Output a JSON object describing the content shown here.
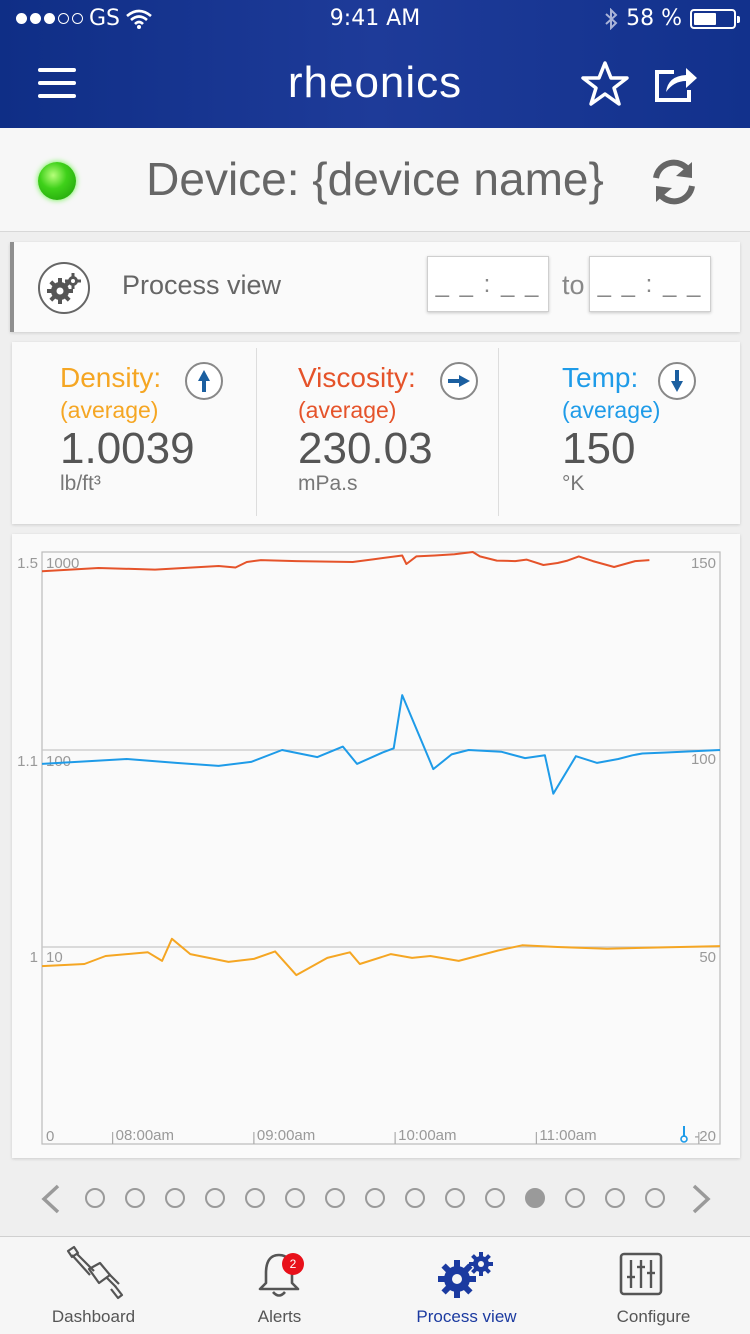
{
  "status_bar": {
    "carrier": "GS",
    "time": "9:41 AM",
    "battery": "58 %",
    "battery_level": 0.58,
    "signal_bars_filled": 3,
    "signal_bars_total": 5
  },
  "header": {
    "title": "rheonics",
    "menu_icon": "hamburger-menu-icon",
    "favorite_icon": "star-icon",
    "share_icon": "share-icon"
  },
  "device": {
    "label": "Device: {device name}",
    "status_color": "#3fd11a",
    "refresh_icon": "refresh-icon"
  },
  "process_view": {
    "title": "Process view",
    "from_value": "_ _ : _ _",
    "to_label": "to",
    "to_value": "_ _ : _ _"
  },
  "metrics": [
    {
      "name": "Density:",
      "sub": "(average)",
      "value": "1.0039",
      "unit": "lb/ft³",
      "color": "#f5a623",
      "trend": "up"
    },
    {
      "name": "Viscosity:",
      "sub": "(average)",
      "value": "230.03",
      "unit": "mPa.s",
      "color": "#e5532a",
      "trend": "right"
    },
    {
      "name": "Temp:",
      "sub": "(average)",
      "value": "150",
      "unit": "°K",
      "color": "#1e9be8",
      "trend": "down"
    }
  ],
  "chart_data": {
    "type": "line",
    "x_ticks": [
      "08:00am",
      "09:00am",
      "10:00am",
      "11:00am"
    ],
    "y_left_density_ticks": [
      "1.5",
      "1.1",
      "1"
    ],
    "y_left_viscosity_ticks": [
      "1000",
      "100",
      "10",
      "0"
    ],
    "y_right_temp_ticks": [
      "150",
      "100",
      "50",
      "-20"
    ],
    "x_range": [
      7.5,
      12.3
    ],
    "grid": true,
    "series": [
      {
        "color": "#e5532a",
        "x": [
          7.5,
          7.9,
          8.3,
          8.75,
          8.87,
          8.95,
          9.05,
          9.3,
          9.7,
          9.85,
          10.05,
          10.08,
          10.15,
          10.28,
          10.42,
          10.55,
          10.6,
          10.72,
          10.85,
          10.93,
          11.05,
          11.15,
          11.22,
          11.3,
          11.4,
          11.55,
          11.7,
          11.8
        ],
        "y": [
          800,
          830,
          815,
          850,
          835,
          890,
          910,
          900,
          890,
          920,
          960,
          870,
          950,
          960,
          975,
          1000,
          950,
          905,
          900,
          915,
          860,
          880,
          905,
          950,
          900,
          840,
          900,
          910
        ]
      },
      {
        "color": "#1e9be8",
        "x": [
          7.5,
          8.1,
          8.45,
          8.75,
          8.98,
          9.2,
          9.45,
          9.63,
          9.73,
          9.91,
          9.99,
          10.05,
          10.27,
          10.4,
          10.52,
          10.75,
          10.92,
          11.06,
          11.12,
          11.28,
          11.43,
          11.58,
          11.68,
          11.75,
          11.9,
          12.3
        ],
        "y": [
          85,
          90,
          86,
          83,
          87,
          100,
          92,
          104,
          85,
          97,
          102,
          190,
          80,
          95,
          100,
          98,
          91,
          94,
          60,
          93,
          86,
          90,
          94,
          96,
          97,
          100
        ]
      },
      {
        "color": "#f5a623",
        "x": [
          7.5,
          7.8,
          7.95,
          8.25,
          8.35,
          8.42,
          8.55,
          8.82,
          9.0,
          9.15,
          9.3,
          9.52,
          9.68,
          9.75,
          9.97,
          10.12,
          10.25,
          10.45,
          10.73,
          10.9,
          11.15,
          11.5,
          12.3
        ],
        "y": [
          8,
          8.2,
          9,
          9.4,
          8.5,
          11,
          9.2,
          8.4,
          8.7,
          9.5,
          7.2,
          8.8,
          9.4,
          8.2,
          9.2,
          8.8,
          9.0,
          8.5,
          9.6,
          10.2,
          10.0,
          9.8,
          10.1
        ]
      }
    ]
  },
  "pager": {
    "page_count": 15,
    "active_index": 11,
    "prev_icon": "chevron-left-icon",
    "next_icon": "chevron-right-icon"
  },
  "tabs": [
    {
      "label": "Dashboard",
      "icon": "sensor-probe-icon",
      "active": false
    },
    {
      "label": "Alerts",
      "icon": "bell-icon",
      "badge": "2",
      "active": false
    },
    {
      "label": "Process view",
      "icon": "gears-icon",
      "active": true
    },
    {
      "label": "Configure",
      "icon": "sliders-icon",
      "active": false
    }
  ]
}
